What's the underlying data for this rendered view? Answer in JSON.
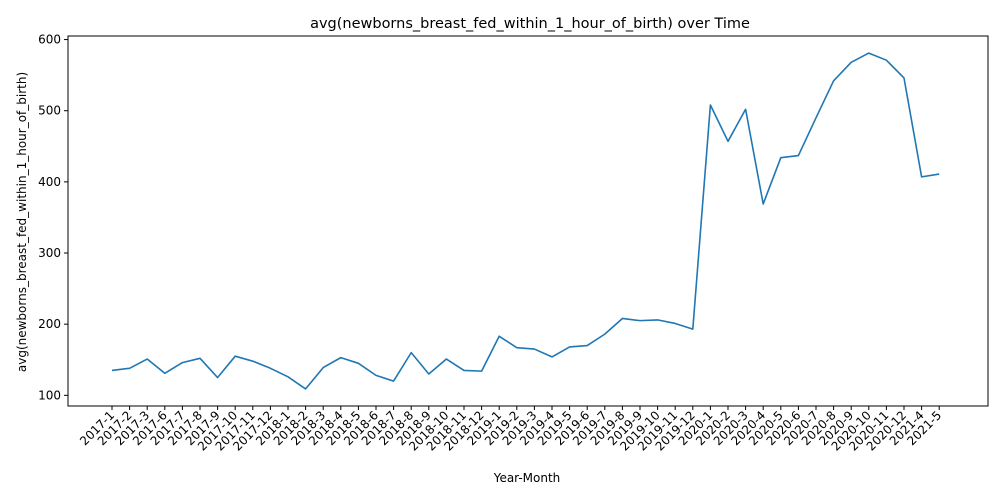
{
  "chart_data": {
    "type": "line",
    "title": "avg(newborns_breast_fed_within_1_hour_of_birth) over Time",
    "xlabel": "Year-Month",
    "ylabel": "avg(newborns_breast_fed_within_1_hour_of_birth)",
    "ylim": [
      85,
      605
    ],
    "yticks": [
      100,
      200,
      300,
      400,
      500,
      600
    ],
    "grid": false,
    "line_color": "#1f77b4",
    "categories": [
      "2017-1",
      "2017-2",
      "2017-3",
      "2017-6",
      "2017-7",
      "2017-8",
      "2017-9",
      "2017-10",
      "2017-11",
      "2017-12",
      "2018-1",
      "2018-2",
      "2018-3",
      "2018-4",
      "2018-5",
      "2018-6",
      "2018-7",
      "2018-8",
      "2018-9",
      "2018-10",
      "2018-11",
      "2018-12",
      "2019-1",
      "2019-2",
      "2019-3",
      "2019-4",
      "2019-5",
      "2019-6",
      "2019-7",
      "2019-8",
      "2019-9",
      "2019-10",
      "2019-11",
      "2019-12",
      "2020-1",
      "2020-2",
      "2020-3",
      "2020-4",
      "2020-5",
      "2020-6",
      "2020-7",
      "2020-8",
      "2020-9",
      "2020-10",
      "2020-11",
      "2020-12",
      "2021-4",
      "2021-5"
    ],
    "series": [
      {
        "values": [
          135,
          138,
          151,
          131,
          146,
          152,
          125,
          155,
          148,
          138,
          126,
          109,
          139,
          153,
          145,
          128,
          120,
          160,
          130,
          151,
          135,
          134,
          183,
          167,
          165,
          154,
          168,
          170,
          186,
          208,
          205,
          206,
          201,
          193,
          508,
          457,
          502,
          369,
          434,
          437,
          490,
          542,
          568,
          581,
          571,
          546,
          407,
          411
        ]
      }
    ]
  }
}
